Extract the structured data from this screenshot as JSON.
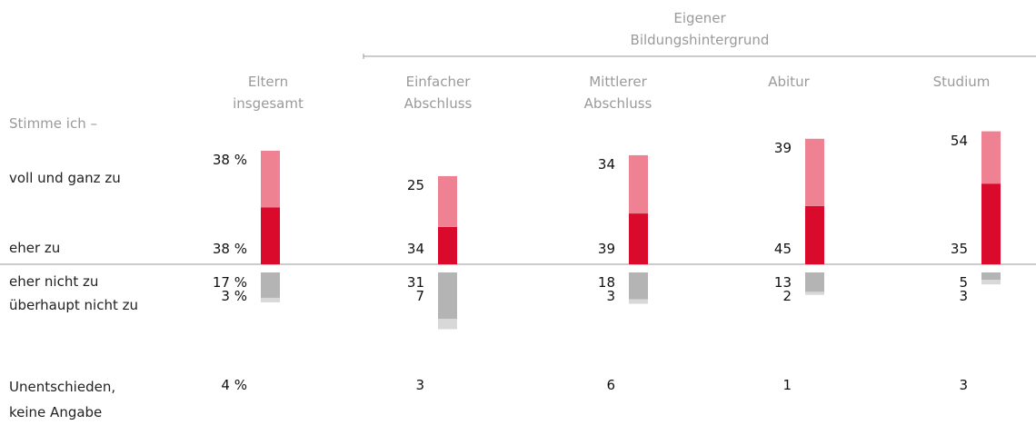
{
  "chart_data": {
    "type": "diverging-bar",
    "group_title": "Eigener Bildungshintergrund",
    "row_title": "Stimme ich –",
    "categories": [
      "Eltern insgesamt",
      "Einfacher Abschluss",
      "Mittlerer Abschluss",
      "Abitur",
      "Studium"
    ],
    "series": [
      {
        "name": "voll und ganz zu",
        "color": "#d90a2c",
        "side": "positive",
        "values": [
          38,
          25,
          34,
          39,
          54
        ],
        "value_labels": [
          "38 %",
          "25",
          "34",
          "39",
          "54"
        ]
      },
      {
        "name": "eher zu",
        "color": "#ee8292",
        "side": "positive",
        "values": [
          38,
          34,
          39,
          45,
          35
        ],
        "value_labels": [
          "38 %",
          "34",
          "39",
          "45",
          "35"
        ]
      },
      {
        "name": "eher nicht zu",
        "color": "#b4b4b4",
        "side": "negative",
        "values": [
          17,
          31,
          18,
          13,
          5
        ],
        "value_labels": [
          "17 %",
          "31",
          "18",
          "13",
          "5"
        ]
      },
      {
        "name": "überhaupt nicht zu",
        "color": "#d8d8d8",
        "side": "negative",
        "values": [
          3,
          7,
          3,
          2,
          3
        ],
        "value_labels": [
          "3 %",
          "7",
          "3",
          "2",
          "3"
        ]
      }
    ],
    "undecided": {
      "name": "Unentschieden, keine Angabe",
      "values": [
        4,
        3,
        6,
        1,
        3
      ],
      "value_labels": [
        "4 %",
        "3",
        "6",
        "1",
        "3"
      ]
    }
  }
}
